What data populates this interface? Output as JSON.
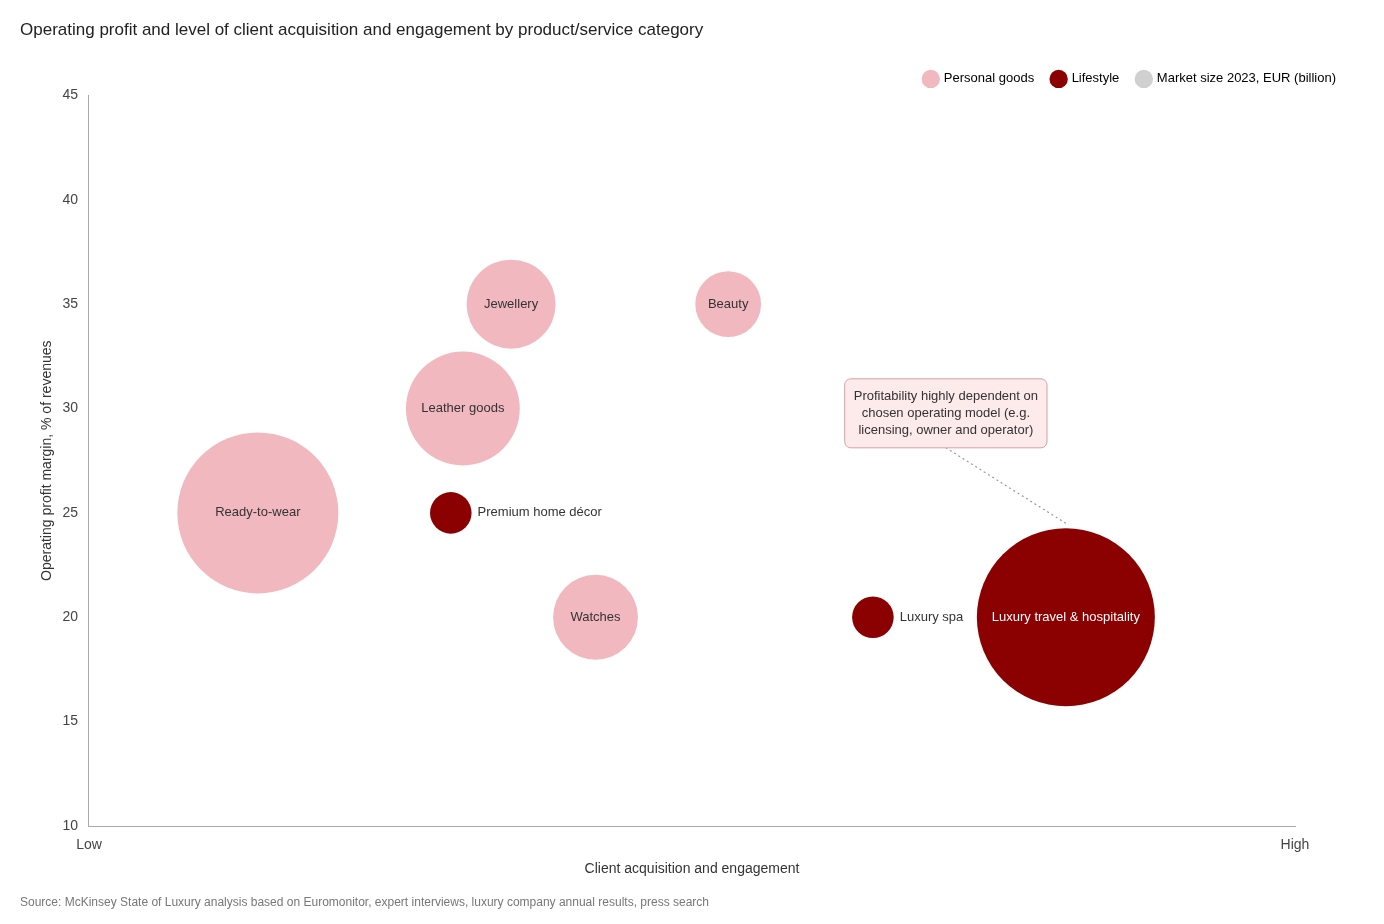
{
  "chart_data": {
    "type": "bubble",
    "title": "Operating profit and level of client acquisition and engagement by product/service category",
    "source": "Source: McKinsey State of Luxury analysis based on Euromonitor, expert interviews, luxury company annual results, press search",
    "x_label": "Client acquisition and engagement",
    "y_label": "Operating profit margin, % of revenues",
    "xlim": [
      0,
      10
    ],
    "xticks": [
      {
        "value": 0,
        "label": "Low"
      },
      {
        "value": 10,
        "label": "High"
      }
    ],
    "ylim": [
      10,
      45
    ],
    "yticks": [
      10,
      15,
      20,
      25,
      30,
      35,
      40,
      45
    ],
    "grid": false,
    "legend": "top right",
    "series": [
      {
        "name": "Personal goods",
        "color": "#f2b8c0",
        "points": [
          {
            "name": "Ready-to-wear",
            "x": 1.4,
            "y": 25,
            "size": 18000
          },
          {
            "name": "Leather goods",
            "x": 3.1,
            "y": 30,
            "size": 9000
          },
          {
            "name": "Jewellery",
            "x": 3.5,
            "y": 35,
            "size": 5500
          },
          {
            "name": "Beauty",
            "x": 5.3,
            "y": 35,
            "size": 3000
          },
          {
            "name": "Watches",
            "x": 4.2,
            "y": 20,
            "size": 5000
          }
        ]
      },
      {
        "name": "Lifestyle",
        "color": "#8b0000",
        "points": [
          {
            "name": "Premium home décor",
            "x": 3.0,
            "y": 25,
            "size": 1200
          },
          {
            "name": "Luxury spa",
            "x": 6.5,
            "y": 20,
            "size": 1200
          },
          {
            "name": "Luxury travel & hospitality",
            "x": 8.1,
            "y": 20,
            "size": 22000
          }
        ]
      }
    ],
    "size_legend": {
      "text": "Market size 2023, EUR (billion)",
      "color": "#d0d0d0"
    },
    "annotations": [
      {
        "text": "Profitability highly dependent on\nchosen operating model (e.g.\nlicensing, owner and operator)",
        "x": 8.1,
        "y": 24.5
      }
    ]
  }
}
